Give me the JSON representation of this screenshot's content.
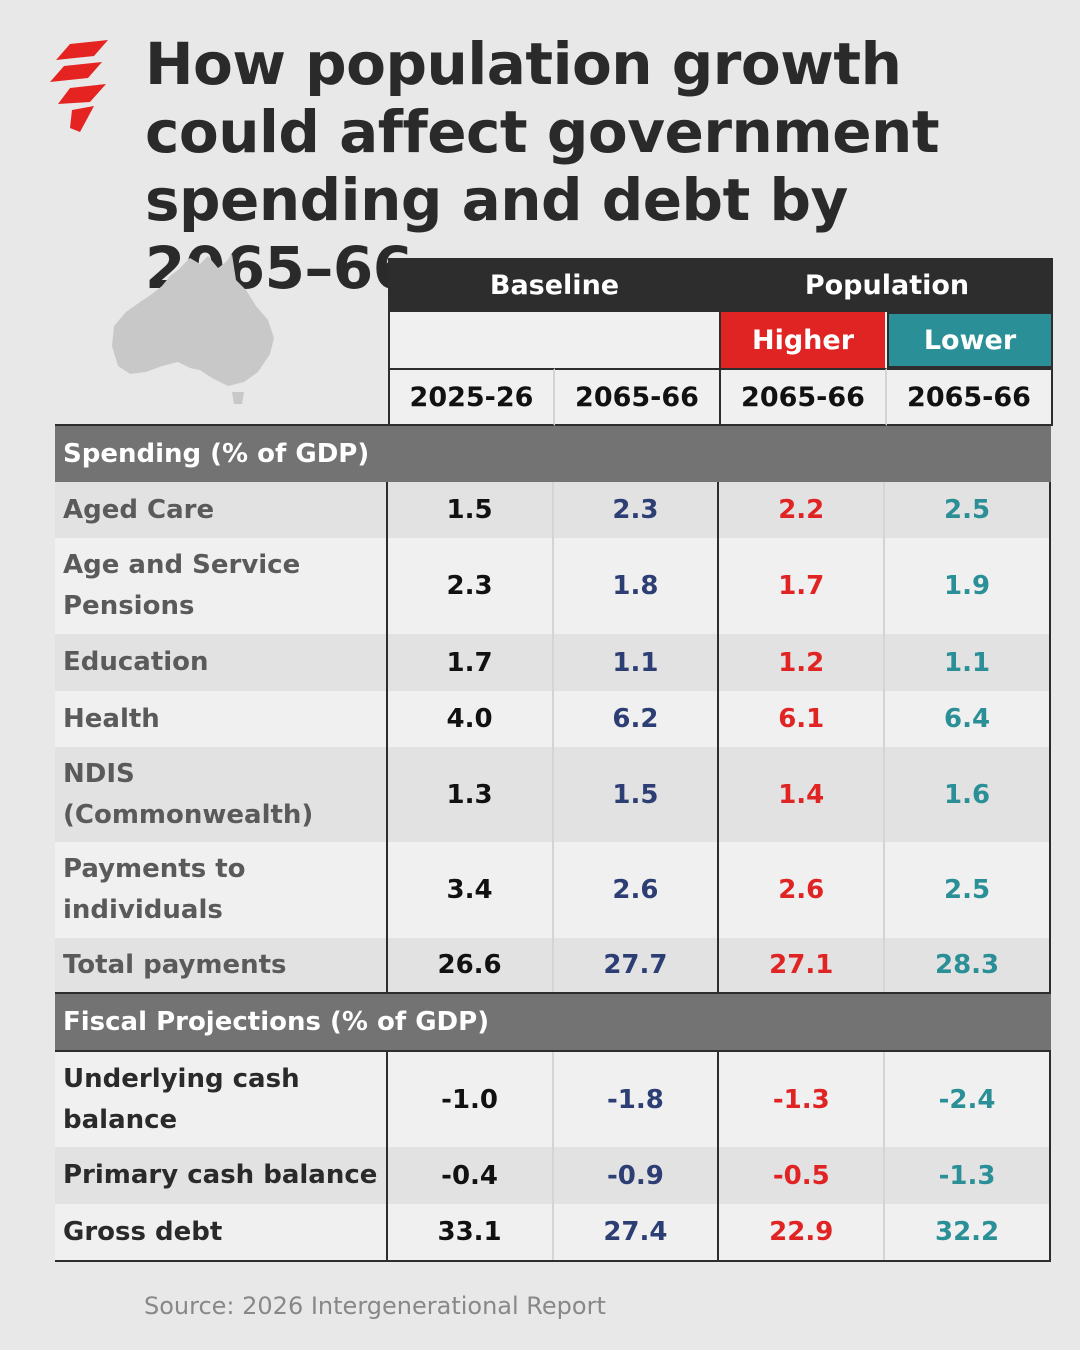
{
  "title": "How population growth could affect government spending and debt by 2065–66",
  "header": {
    "baseline": "Baseline",
    "population": "Population",
    "higher": "Higher",
    "lower": "Lower",
    "years": [
      "2025-26",
      "2065-66",
      "2065-66",
      "2065-66"
    ]
  },
  "sections": [
    {
      "label": "Spending (% of GDP)",
      "rows": [
        {
          "label": "Aged Care",
          "values": [
            "1.5",
            "2.3",
            "2.2",
            "2.5"
          ]
        },
        {
          "label": "Age and Service Pensions",
          "values": [
            "2.3",
            "1.8",
            "1.7",
            "1.9"
          ]
        },
        {
          "label": "Education",
          "values": [
            "1.7",
            "1.1",
            "1.2",
            "1.1"
          ]
        },
        {
          "label": "Health",
          "values": [
            "4.0",
            "6.2",
            "6.1",
            "6.4"
          ]
        },
        {
          "label": "NDIS (Commonwealth)",
          "values": [
            "1.3",
            "1.5",
            "1.4",
            "1.6"
          ]
        },
        {
          "label": "Payments to individuals",
          "values": [
            "3.4",
            "2.6",
            "2.6",
            "2.5"
          ]
        },
        {
          "label": "Total payments",
          "values": [
            "26.6",
            "27.7",
            "27.1",
            "28.3"
          ]
        }
      ]
    },
    {
      "label": "Fiscal Projections (% of GDP)",
      "rows": [
        {
          "label": "Underlying cash balance",
          "values": [
            "-1.0",
            "-1.8",
            "-1.3",
            "-2.4"
          ]
        },
        {
          "label": "Primary cash balance",
          "values": [
            "-0.4",
            "-0.9",
            "-0.5",
            "-1.3"
          ]
        },
        {
          "label": "Gross debt",
          "values": [
            "33.1",
            "27.4",
            "22.9",
            "32.2"
          ]
        }
      ]
    }
  ],
  "source": "Source: 2026 Intergenerational Report",
  "colors": {
    "higher": "#e02424",
    "lower": "#2a8f96",
    "baseline_future": "#2c3e73",
    "header": "#2d2d2d",
    "section": "#737373"
  },
  "icons": [
    "sbs-logo-icon",
    "australia-map-icon"
  ]
}
